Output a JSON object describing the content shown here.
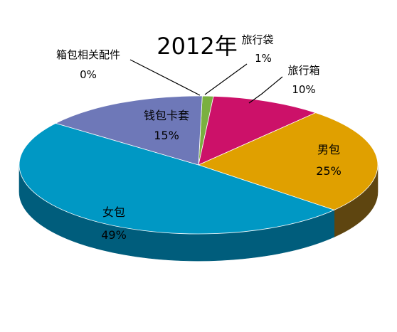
{
  "chart_data": {
    "type": "pie",
    "title": "2012年",
    "categories": [
      "旅行袋",
      "旅行箱",
      "男包",
      "女包",
      "钱包卡套",
      "箱包相关配件"
    ],
    "values": [
      1,
      10,
      25,
      49,
      15,
      0
    ],
    "percent_labels": [
      "1%",
      "10%",
      "25%",
      "49%",
      "15%",
      "0%"
    ],
    "colors": [
      "#7AB040",
      "#CC1169",
      "#E0A000",
      "#0098C4",
      "#6E78B8",
      "#9A9A9A"
    ],
    "side_colors": [
      "#4F7A20",
      "#7A0A3E",
      "#5E4510",
      "#005D7C",
      "#424A80",
      "#606060"
    ],
    "three_d": true,
    "legend": "none",
    "grid": false
  }
}
